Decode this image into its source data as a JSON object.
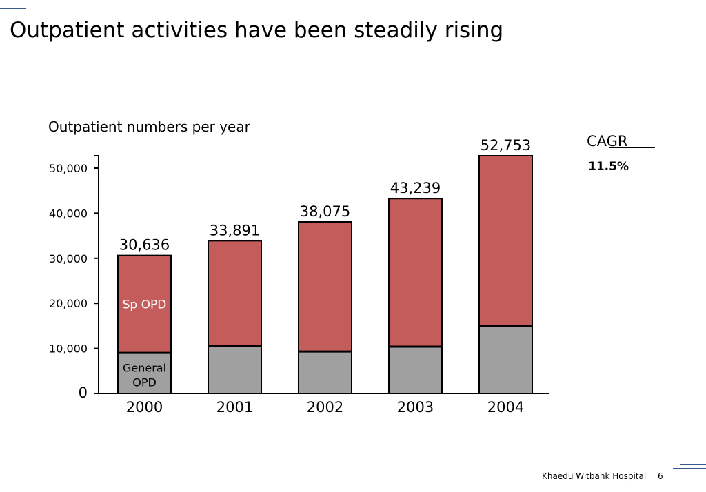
{
  "slide": {
    "title": "Outpatient activities have been steadily rising",
    "footer": "Khaedu Witbank Hospital",
    "page_number": "6"
  },
  "cagr": {
    "label": "CAGR",
    "value": "11.5%"
  },
  "colors": {
    "sp_opd": "#c45c5c",
    "general_opd": "#a0a0a0",
    "accent_lines": "#3a5a8c"
  },
  "chart_data": {
    "type": "bar",
    "stacked": true,
    "title": "Outpatient numbers per year",
    "categories": [
      "2000",
      "2001",
      "2002",
      "2003",
      "2004"
    ],
    "series": [
      {
        "name": "General OPD",
        "values": [
          9000,
          10500,
          9300,
          10400,
          15000
        ]
      },
      {
        "name": "Sp OPD",
        "values": [
          21636,
          23391,
          28775,
          32839,
          37753
        ]
      }
    ],
    "totals": [
      30636,
      33891,
      38075,
      43239,
      52753
    ],
    "total_labels": [
      "30,636",
      "33,891",
      "38,075",
      "43,239",
      "52,753"
    ],
    "y_ticks": [
      "0",
      "10,000",
      "20,000",
      "30,000",
      "40,000",
      "50,000"
    ],
    "y_tick_values": [
      0,
      10000,
      20000,
      30000,
      40000,
      50000
    ],
    "ylim": [
      0,
      53000
    ],
    "grid": false,
    "legend": "in-bar labels on first bar"
  }
}
